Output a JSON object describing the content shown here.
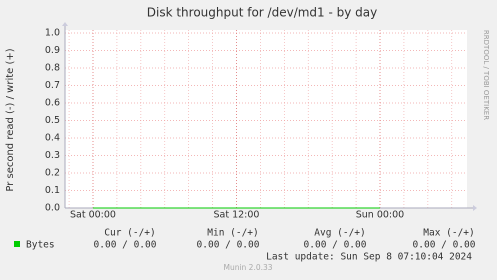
{
  "chart_data": {
    "type": "line",
    "title": "Disk throughput for /dev/md1 - by day",
    "y_label": "Pr second read (-) / write (+)",
    "side_text": "RRDTOOL / TOBI OETIKER",
    "categories": [
      "Sat 00:00",
      "Sat 12:00",
      "Sun 00:00"
    ],
    "series": [
      {
        "name": "Bytes",
        "color": "#00cc00",
        "values": [
          0,
          0,
          0
        ]
      }
    ],
    "ylim": [
      0,
      1
    ],
    "yticks": [
      {
        "value": 0,
        "label": "0.0"
      },
      {
        "value": 0.1,
        "label": "0.1"
      },
      {
        "value": 0.2,
        "label": "0.2"
      },
      {
        "value": 0.3,
        "label": "0.3"
      },
      {
        "value": 0.4,
        "label": "0.4"
      },
      {
        "value": 0.5,
        "label": "0.5"
      },
      {
        "value": 0.6,
        "label": "0.6"
      },
      {
        "value": 0.7,
        "label": "0.7"
      },
      {
        "value": 0.8,
        "label": "0.8"
      },
      {
        "value": 0.9,
        "label": "0.9"
      },
      {
        "value": 1,
        "label": "1.0"
      }
    ],
    "grid": true,
    "legend_table": {
      "headers": [
        "Cur (-/+)",
        "Min (-/+)",
        "Avg (-/+)",
        "Max (-/+)"
      ],
      "cells": [
        "0.00 /  0.00",
        "0.00 /  0.00",
        "0.00 /  0.00",
        "0.00 /  0.00"
      ]
    },
    "last_update": "Last update:  Sun Sep  8 07:10:04 2024",
    "footer": "Munin 2.0.33"
  }
}
